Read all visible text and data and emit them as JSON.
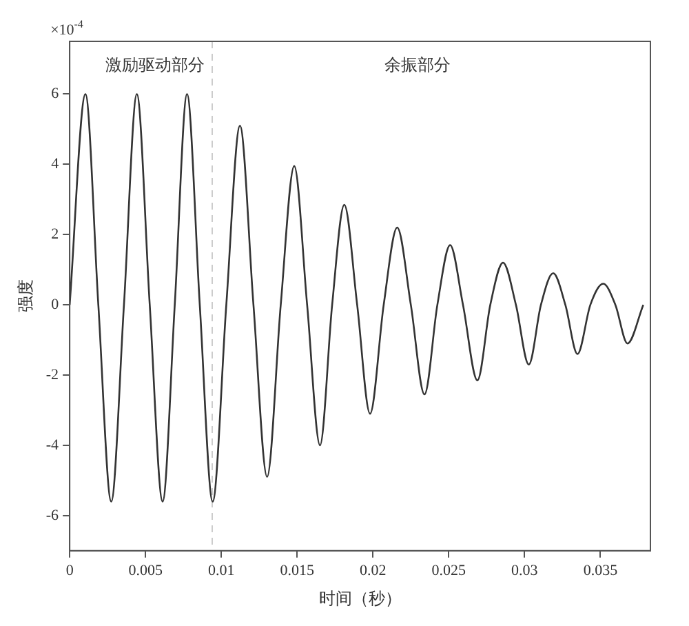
{
  "chart_data": {
    "type": "line",
    "xlabel": "时间（秒）",
    "ylabel": "强度",
    "annotations": [
      "×10$^{-4}$",
      "激励驱动部分",
      "余振部分"
    ],
    "x": [
      0,
      0.00104,
      0.00189,
      0.00274,
      0.00358,
      0.00443,
      0.00528,
      0.00613,
      0.00693,
      0.00774,
      0.00858,
      0.00943,
      0.01033,
      0.01123,
      0.01212,
      0.01302,
      0.01392,
      0.01481,
      0.01566,
      0.01651,
      0.01731,
      0.01811,
      0.01896,
      0.01981,
      0.02071,
      0.0216,
      0.0225,
      0.0234,
      0.02425,
      0.02509,
      0.02594,
      0.02689,
      0.02774,
      0.02858,
      0.02943,
      0.03028,
      0.03108,
      0.03189,
      0.03269,
      0.03349,
      0.03434,
      0.03519,
      0.03599,
      0.03679,
      0.03783
    ],
    "series": [
      {
        "color": "#333333",
        "values": [
          0,
          6.0,
          0,
          -5.6,
          0,
          6.0,
          0,
          -5.6,
          0,
          6.0,
          0,
          -5.6,
          0,
          5.1,
          0,
          -4.9,
          0,
          3.95,
          0,
          -4.0,
          0,
          2.85,
          0,
          -3.1,
          0,
          2.2,
          0,
          -2.55,
          0,
          1.7,
          0,
          -2.15,
          0,
          1.2,
          0,
          -1.7,
          0,
          0.9,
          0,
          -1.4,
          0,
          0.6,
          0,
          -1.1,
          0
        ]
      }
    ],
    "xlim": [
      0,
      0.0383
    ],
    "xticks": [
      0,
      0.005,
      0.01,
      0.015,
      0.02,
      0.025,
      0.03,
      0.035
    ],
    "ylim": [
      -7,
      7.5
    ],
    "yticks": [
      -6,
      -4,
      -2,
      0,
      2,
      4,
      6
    ],
    "ref_lines": [
      {
        "axis": "x",
        "value": 0.0094,
        "color": "#cccccc",
        "line_style": "dashed"
      }
    ],
    "grid": false,
    "legend": false,
    "marker": "none",
    "line_style": "solid"
  }
}
